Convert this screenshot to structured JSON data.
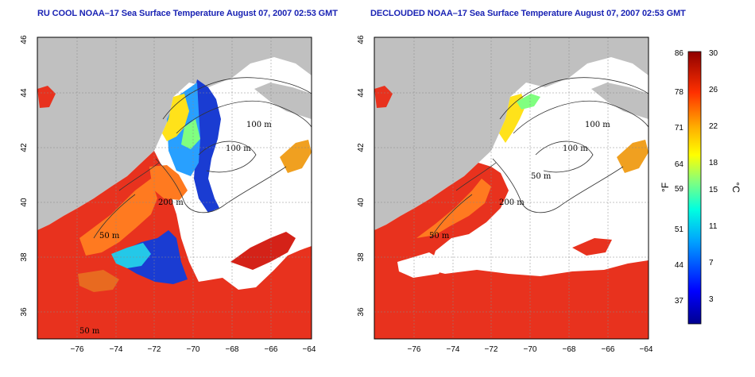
{
  "panels": [
    {
      "title": "RU COOL NOAA–17 Sea Surface Temperature August 07, 2007 02:53 GMT",
      "contour_labels": [
        "100 m",
        "100 m",
        "200 m",
        "50 m",
        "50 m"
      ]
    },
    {
      "title": "DECLOUDED NOAA–17 Sea Surface Temperature August 07, 2007 02:53 GMT",
      "contour_labels": [
        "100 m",
        "100 m",
        "50 m",
        "200 m",
        "50 m"
      ]
    }
  ],
  "axes": {
    "x_ticks": [
      "−76",
      "−74",
      "−72",
      "−70",
      "−68",
      "−66",
      "−64"
    ],
    "y_ticks": [
      "36",
      "38",
      "40",
      "42",
      "44",
      "46"
    ],
    "lon_range": [
      -77,
      -63
    ],
    "lat_range": [
      35,
      46
    ]
  },
  "colorbar": {
    "fahrenheit_ticks": [
      "86",
      "78",
      "71",
      "64",
      "59",
      "51",
      "44",
      "37"
    ],
    "celsius_ticks": [
      "30",
      "26",
      "22",
      "18",
      "15",
      "11",
      "7",
      "3"
    ],
    "fahrenheit_label": "°F",
    "celsius_label": "°C",
    "range_c": [
      0,
      30
    ]
  },
  "colors": {
    "land": "#c0c0c0",
    "ocean_nodata": "#ffffff",
    "title": "#1a23b4",
    "warm": "#e8321e",
    "cold": "#1a3cd2"
  }
}
